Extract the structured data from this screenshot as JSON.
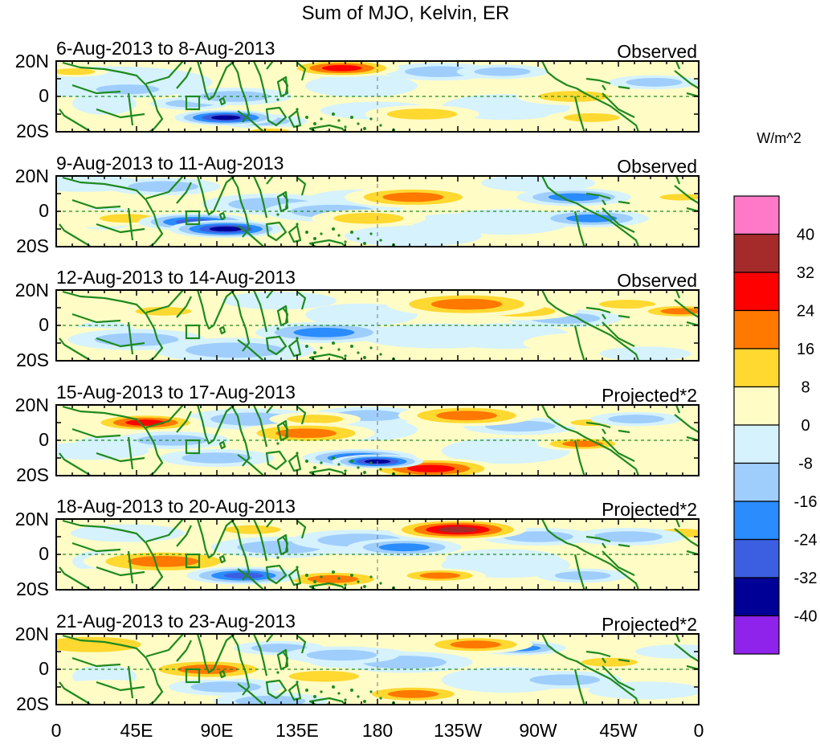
{
  "title": "Sum of MJO, Kelvin, ER",
  "lat_labels": [
    "20N",
    "0",
    "20S"
  ],
  "lon_labels": [
    "0",
    "45E",
    "90E",
    "135E",
    "180",
    "135W",
    "90W",
    "45W",
    "0"
  ],
  "colorbar": {
    "units": "W/m^2",
    "levels": [
      "40",
      "32",
      "24",
      "16",
      "8",
      "0",
      "-8",
      "-16",
      "-24",
      "-32",
      "-40"
    ],
    "colors": [
      "#ff79c8",
      "#a52a2a",
      "#ff0000",
      "#ff7800",
      "#ffd830",
      "#fffcc6",
      "#d5f2fd",
      "#9fcefd",
      "#2a8cfd",
      "#3c5ee0",
      "#000096",
      "#9023eb"
    ]
  },
  "panels": [
    {
      "date_range": "6-Aug-2013 to 8-Aug-2013",
      "status": "Observed",
      "anomalies": [
        [
          40,
          4,
          9,
          -10
        ],
        [
          75,
          -4,
          7,
          -14
        ],
        [
          95,
          -12,
          9,
          -34
        ],
        [
          100,
          0,
          10,
          -16
        ],
        [
          160,
          16,
          10,
          26
        ],
        [
          115,
          -14,
          8,
          -12
        ],
        [
          30,
          8,
          18,
          -8
        ],
        [
          215,
          14,
          10,
          -10
        ],
        [
          205,
          -10,
          10,
          10
        ],
        [
          250,
          14,
          8,
          -10
        ],
        [
          290,
          0,
          10,
          14
        ],
        [
          120,
          -20,
          6,
          12
        ],
        [
          300,
          -12,
          8,
          10
        ],
        [
          345,
          -14,
          8,
          8
        ],
        [
          10,
          14,
          6,
          10
        ],
        [
          335,
          8,
          8,
          -14
        ],
        [
          180,
          -8,
          10,
          -8
        ]
      ]
    },
    {
      "date_range": "9-Aug-2013 to 11-Aug-2013",
      "status": "Observed",
      "anomalies": [
        [
          20,
          -4,
          10,
          8
        ],
        [
          40,
          -4,
          8,
          14
        ],
        [
          78,
          -6,
          10,
          -28
        ],
        [
          95,
          -10,
          10,
          -40
        ],
        [
          120,
          4,
          12,
          -10
        ],
        [
          155,
          0,
          12,
          -12
        ],
        [
          175,
          -4,
          10,
          14
        ],
        [
          200,
          8,
          12,
          24
        ],
        [
          230,
          -6,
          10,
          -8
        ],
        [
          290,
          8,
          10,
          -20
        ],
        [
          300,
          -4,
          10,
          -24
        ],
        [
          60,
          14,
          10,
          -10
        ],
        [
          15,
          16,
          10,
          -8
        ],
        [
          350,
          8,
          6,
          14
        ],
        [
          200,
          -14,
          12,
          -8
        ],
        [
          270,
          16,
          10,
          -8
        ]
      ]
    },
    {
      "date_range": "12-Aug-2013 to 14-Aug-2013",
      "status": "Observed",
      "anomalies": [
        [
          20,
          12,
          14,
          8
        ],
        [
          60,
          8,
          8,
          16
        ],
        [
          45,
          -8,
          12,
          -10
        ],
        [
          150,
          -4,
          12,
          -20
        ],
        [
          165,
          -12,
          10,
          8
        ],
        [
          230,
          12,
          14,
          18
        ],
        [
          260,
          8,
          10,
          16
        ],
        [
          285,
          4,
          10,
          -10
        ],
        [
          350,
          8,
          8,
          22
        ],
        [
          10,
          -8,
          14,
          6
        ],
        [
          100,
          -14,
          14,
          -10
        ],
        [
          215,
          -6,
          14,
          -8
        ],
        [
          300,
          -10,
          12,
          8
        ],
        [
          320,
          12,
          8,
          12
        ],
        [
          330,
          -16,
          8,
          -8
        ],
        [
          125,
          14,
          10,
          -8
        ]
      ]
    },
    {
      "date_range": "15-Aug-2013 to 17-Aug-2013",
      "status": "Projected*2",
      "anomalies": [
        [
          50,
          10,
          10,
          26
        ],
        [
          65,
          0,
          10,
          -14
        ],
        [
          110,
          12,
          12,
          -14
        ],
        [
          140,
          4,
          12,
          20
        ],
        [
          145,
          12,
          8,
          16
        ],
        [
          170,
          -10,
          10,
          -30
        ],
        [
          180,
          -12,
          8,
          -34
        ],
        [
          210,
          -16,
          12,
          28
        ],
        [
          230,
          14,
          12,
          18
        ],
        [
          260,
          8,
          10,
          -10
        ],
        [
          295,
          -2,
          8,
          22
        ],
        [
          300,
          10,
          6,
          14
        ],
        [
          90,
          -10,
          10,
          -10
        ],
        [
          175,
          14,
          10,
          -10
        ],
        [
          20,
          -6,
          10,
          -8
        ],
        [
          325,
          12,
          8,
          -14
        ],
        [
          345,
          -10,
          10,
          8
        ]
      ]
    },
    {
      "date_range": "18-Aug-2013 to 20-Aug-2013",
      "status": "Projected*2",
      "anomalies": [
        [
          60,
          -4,
          14,
          22
        ],
        [
          105,
          -12,
          10,
          -30
        ],
        [
          125,
          4,
          12,
          -10
        ],
        [
          155,
          -14,
          10,
          24
        ],
        [
          170,
          8,
          12,
          -14
        ],
        [
          195,
          4,
          10,
          -24
        ],
        [
          215,
          -12,
          8,
          24
        ],
        [
          225,
          14,
          12,
          36
        ],
        [
          270,
          10,
          10,
          -16
        ],
        [
          295,
          -12,
          8,
          -10
        ],
        [
          320,
          10,
          10,
          -12
        ],
        [
          40,
          12,
          10,
          -8
        ],
        [
          20,
          -14,
          12,
          8
        ],
        [
          250,
          -2,
          10,
          -8
        ],
        [
          350,
          12,
          8,
          10
        ],
        [
          110,
          14,
          8,
          10
        ]
      ]
    },
    {
      "date_range": "21-Aug-2013 to 23-Aug-2013",
      "status": "Projected*2",
      "anomalies": [
        [
          85,
          0,
          12,
          20
        ],
        [
          95,
          -10,
          10,
          -12
        ],
        [
          120,
          -18,
          10,
          -14
        ],
        [
          150,
          -4,
          10,
          16
        ],
        [
          160,
          8,
          10,
          -12
        ],
        [
          195,
          4,
          12,
          -10
        ],
        [
          200,
          -14,
          10,
          18
        ],
        [
          235,
          14,
          10,
          24
        ],
        [
          260,
          12,
          8,
          -20
        ],
        [
          285,
          -6,
          10,
          -10
        ],
        [
          310,
          4,
          8,
          14
        ],
        [
          20,
          14,
          14,
          10
        ],
        [
          30,
          -12,
          12,
          6
        ],
        [
          330,
          -12,
          10,
          -8
        ],
        [
          350,
          10,
          8,
          -8
        ],
        [
          125,
          12,
          8,
          -10
        ]
      ]
    }
  ]
}
